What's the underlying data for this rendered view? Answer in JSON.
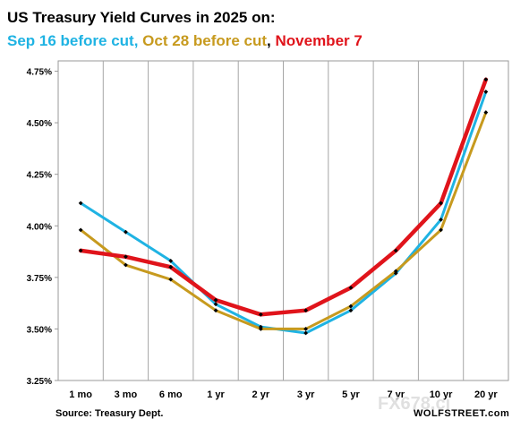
{
  "header": {
    "title": "US Treasury Yield Curves in 2025 on:",
    "subtitle_parts": [
      {
        "text": "Sep 16 before cut",
        "color": "#1fb3e3"
      },
      {
        "text": ", ",
        "color": "#1fb3e3"
      },
      {
        "text": "Oct 28 before cut",
        "color": "#c79a1e"
      },
      {
        "text": ", ",
        "color": "#000000"
      },
      {
        "text": "November 7",
        "color": "#e0141b"
      }
    ]
  },
  "footer": {
    "source": "Source: Treasury Dept.",
    "credit": "WOLFSTREET.com",
    "watermark": "FX678.ci"
  },
  "chart_data": {
    "type": "line",
    "title": "US Treasury Yield Curves in 2025 on:",
    "categories": [
      "1 mo",
      "3 mo",
      "6 mo",
      "1 yr",
      "2 yr",
      "3 yr",
      "5 yr",
      "7 yr",
      "10 yr",
      "20 yr"
    ],
    "y_tick_labels": [
      "3.25%",
      "3.50%",
      "3.75%",
      "4.00%",
      "4.25%",
      "4.50%",
      "4.75%"
    ],
    "y_ticks": [
      3.25,
      3.5,
      3.75,
      4.0,
      4.25,
      4.5,
      4.75
    ],
    "ylim": [
      3.25,
      4.8
    ],
    "grid": "vertical",
    "series": [
      {
        "name": "Sep 16 before cut",
        "color": "#1fb3e3",
        "width": 3,
        "values": [
          4.11,
          3.97,
          3.83,
          3.62,
          3.51,
          3.48,
          3.59,
          3.77,
          4.03,
          4.65
        ]
      },
      {
        "name": "Oct 28 before cut",
        "color": "#c79a1e",
        "width": 3,
        "values": [
          3.98,
          3.81,
          3.74,
          3.59,
          3.5,
          3.5,
          3.61,
          3.78,
          3.98,
          4.55
        ]
      },
      {
        "name": "November 7",
        "color": "#e0141b",
        "width": 4.5,
        "values": [
          3.88,
          3.85,
          3.8,
          3.64,
          3.57,
          3.59,
          3.7,
          3.88,
          4.11,
          4.71
        ]
      }
    ]
  }
}
